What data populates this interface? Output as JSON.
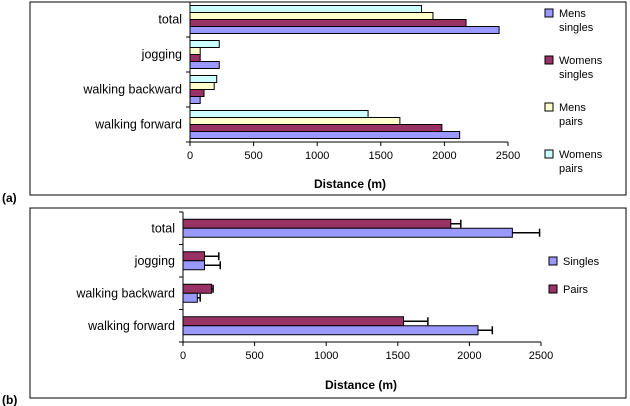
{
  "chart_data": [
    {
      "panel_label": "(a)",
      "type": "bar",
      "orientation": "horizontal",
      "categories": [
        "total",
        "jogging",
        "walking backward",
        "walking forward"
      ],
      "series": [
        {
          "name": "Womens pairs",
          "color": "#ccffff",
          "values": [
            1820,
            230,
            210,
            1400
          ]
        },
        {
          "name": "Mens pairs",
          "color": "#ffffcc",
          "values": [
            1910,
            80,
            190,
            1650
          ]
        },
        {
          "name": "Womens singles",
          "color": "#993366",
          "values": [
            2170,
            80,
            110,
            1980
          ]
        },
        {
          "name": "Mens singles",
          "color": "#9999ff",
          "values": [
            2430,
            230,
            80,
            2120
          ]
        }
      ],
      "xlabel": "Distance (m)",
      "xlim": [
        0,
        2500
      ],
      "xticks": [
        "0",
        "500",
        "1000",
        "1500",
        "2000",
        "2500"
      ],
      "grid": false,
      "legend_position": "right"
    },
    {
      "panel_label": "(b)",
      "type": "bar",
      "orientation": "horizontal",
      "categories": [
        "total",
        "jogging",
        "walking backward",
        "walking forward"
      ],
      "series": [
        {
          "name": "Pairs",
          "color": "#993366",
          "values": [
            1870,
            150,
            200,
            1540
          ],
          "error": [
            70,
            100,
            10,
            170
          ]
        },
        {
          "name": "Singles",
          "color": "#9999ff",
          "values": [
            2300,
            150,
            100,
            2060
          ],
          "error": [
            190,
            110,
            20,
            100
          ]
        }
      ],
      "xlabel": "Distance (m)",
      "xlim": [
        0,
        2500
      ],
      "xticks": [
        "0",
        "500",
        "1000",
        "1500",
        "2000",
        "2500"
      ],
      "grid": false,
      "legend_position": "right"
    }
  ]
}
